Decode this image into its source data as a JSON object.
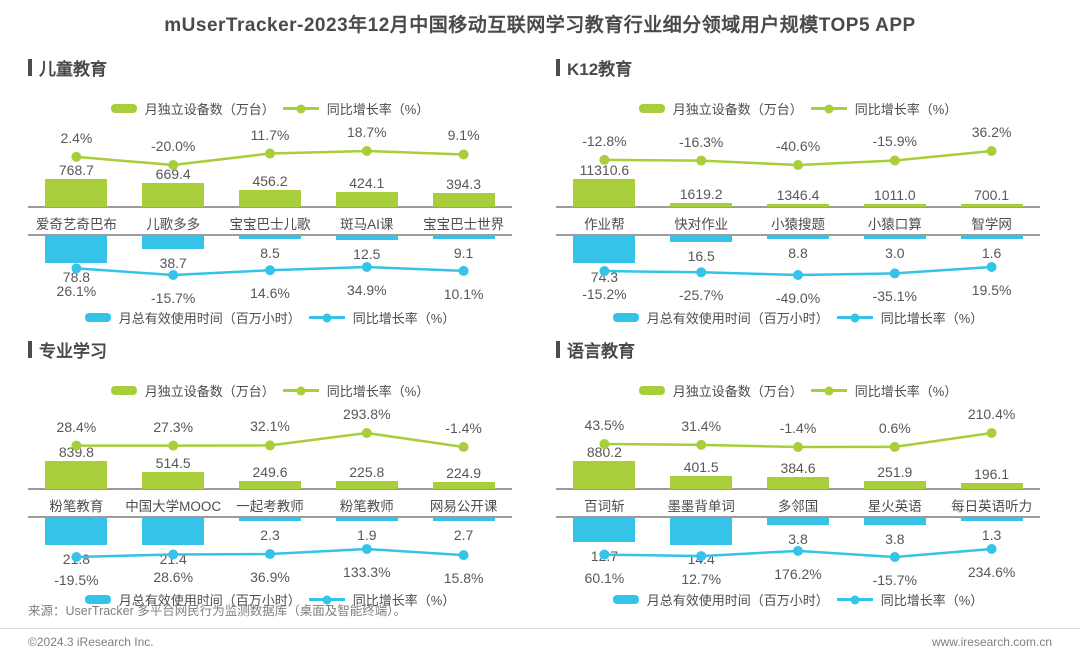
{
  "title": "mUserTracker-2023年12月中国移动互联网学习教育行业细分领域用户规模TOP5 APP",
  "colors": {
    "green": "#a9ce3b",
    "blue": "#35c4e8",
    "text_dark": "#4a4a4a",
    "label": "#595757",
    "axis": "#9b9b9b",
    "footer": "#7f7f7f"
  },
  "footer": {
    "source": "来源：UserTracker 多平台网民行为监测数据库（桌面及智能终端）。",
    "copyright": "©2024.3 iResearch Inc.",
    "website": "www.iresearch.com.cn"
  },
  "chart_data": [
    {
      "type": "bar+line",
      "panel_title": "儿童教育",
      "legend_position": "top-and-bottom",
      "categories": [
        "爱奇艺奇巴布",
        "儿歌多多",
        "宝宝巴士儿歌",
        "斑马AI课",
        "宝宝巴士世界"
      ],
      "series": [
        {
          "name": "月独立设备数（万台）",
          "type": "bar",
          "palette": "green",
          "values": [
            768.7,
            669.4,
            456.2,
            424.1,
            394.3
          ]
        },
        {
          "name": "同比增长率（%）",
          "type": "line",
          "palette": "green",
          "unit": "%",
          "values": [
            2.4,
            -20.0,
            11.7,
            18.7,
            9.1
          ]
        },
        {
          "name": "月总有效使用时间（百万小时）",
          "type": "bar",
          "palette": "blue",
          "values": [
            78.8,
            38.7,
            8.5,
            12.5,
            9.1
          ]
        },
        {
          "name": "同比增长率（%）",
          "type": "line",
          "palette": "blue",
          "unit": "%",
          "values": [
            26.1,
            -15.7,
            14.6,
            34.9,
            10.1
          ]
        }
      ]
    },
    {
      "type": "bar+line",
      "panel_title": "K12教育",
      "legend_position": "top-and-bottom",
      "categories": [
        "作业帮",
        "快对作业",
        "小猿搜题",
        "小猿口算",
        "智学网"
      ],
      "series": [
        {
          "name": "月独立设备数（万台）",
          "type": "bar",
          "palette": "green",
          "values": [
            11310.6,
            1619.2,
            1346.4,
            1011.0,
            700.1
          ]
        },
        {
          "name": "同比增长率（%）",
          "type": "line",
          "palette": "green",
          "unit": "%",
          "values": [
            -12.8,
            -16.3,
            -40.6,
            -15.9,
            36.2
          ]
        },
        {
          "name": "月总有效使用时间（百万小时）",
          "type": "bar",
          "palette": "blue",
          "values": [
            74.3,
            16.5,
            8.8,
            3.0,
            1.6
          ]
        },
        {
          "name": "同比增长率（%）",
          "type": "line",
          "palette": "blue",
          "unit": "%",
          "values": [
            -15.2,
            -25.7,
            -49.0,
            -35.1,
            19.5
          ]
        }
      ]
    },
    {
      "type": "bar+line",
      "panel_title": "专业学习",
      "legend_position": "top-and-bottom",
      "categories": [
        "粉笔教育",
        "中国大学MOOC",
        "一起考教师",
        "粉笔教师",
        "网易公开课"
      ],
      "series": [
        {
          "name": "月独立设备数（万台）",
          "type": "bar",
          "palette": "green",
          "values": [
            839.8,
            514.5,
            249.6,
            225.8,
            224.9
          ]
        },
        {
          "name": "同比增长率（%）",
          "type": "line",
          "palette": "green",
          "unit": "%",
          "values": [
            28.4,
            27.3,
            32.1,
            293.8,
            -1.4
          ]
        },
        {
          "name": "月总有效使用时间（百万小时）",
          "type": "bar",
          "palette": "blue",
          "values": [
            21.8,
            21.4,
            2.3,
            1.9,
            2.7
          ]
        },
        {
          "name": "同比增长率（%）",
          "type": "line",
          "palette": "blue",
          "unit": "%",
          "values": [
            -19.5,
            28.6,
            36.9,
            133.3,
            15.8
          ]
        }
      ]
    },
    {
      "type": "bar+line",
      "panel_title": "语言教育",
      "legend_position": "top-and-bottom",
      "categories": [
        "百词斩",
        "墨墨背单词",
        "多邻国",
        "星火英语",
        "每日英语听力"
      ],
      "series": [
        {
          "name": "月独立设备数（万台）",
          "type": "bar",
          "palette": "green",
          "values": [
            880.2,
            401.5,
            384.6,
            251.9,
            196.1
          ]
        },
        {
          "name": "同比增长率（%）",
          "type": "line",
          "palette": "green",
          "unit": "%",
          "values": [
            43.5,
            31.4,
            -1.4,
            0.6,
            210.4
          ]
        },
        {
          "name": "月总有效使用时间（百万小时）",
          "type": "bar",
          "palette": "blue",
          "values": [
            12.7,
            14.4,
            3.8,
            3.8,
            1.3
          ]
        },
        {
          "name": "同比增长率（%）",
          "type": "line",
          "palette": "blue",
          "unit": "%",
          "values": [
            60.1,
            12.7,
            176.2,
            -15.7,
            234.6
          ]
        }
      ]
    }
  ]
}
